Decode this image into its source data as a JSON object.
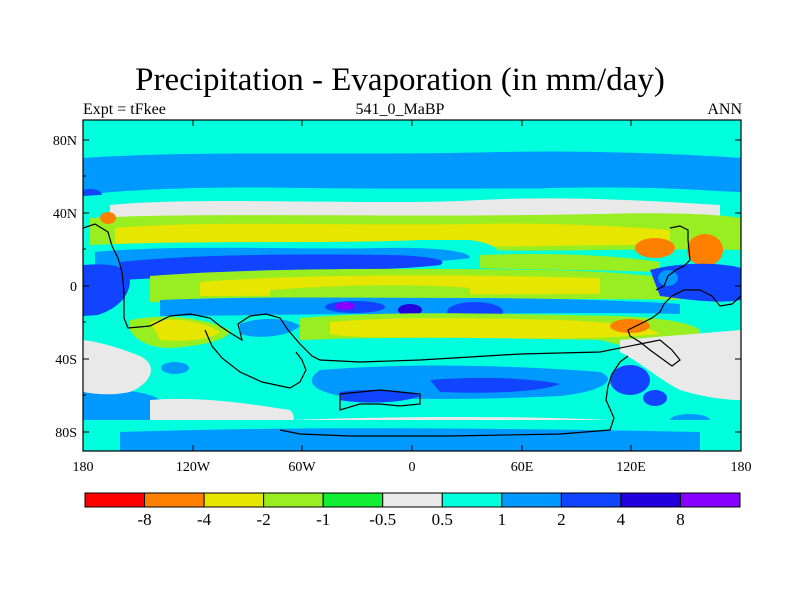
{
  "title": "Precipitation - Evaporation (in mm/day)",
  "subtitle_left": "Expt = tFkee",
  "subtitle_center": "541_0_MaBP",
  "subtitle_right": "ANN",
  "lat_ticks": [
    "80N",
    "40N",
    "0",
    "40S",
    "80S"
  ],
  "lon_ticks": [
    "180",
    "120W",
    "60W",
    "0",
    "60E",
    "120E",
    "180"
  ],
  "colorbar": {
    "colors": [
      "#ff0000",
      "#ff7f00",
      "#e6e600",
      "#99ee22",
      "#11ee33",
      "#e9e9e9",
      "#00ffdd",
      "#0099ff",
      "#1144ff",
      "#2200dd",
      "#8800ff"
    ],
    "labels": [
      "-8",
      "-4",
      "-2",
      "-1",
      "-0.5",
      "0.5",
      "1",
      "2",
      "4",
      "8"
    ]
  }
}
